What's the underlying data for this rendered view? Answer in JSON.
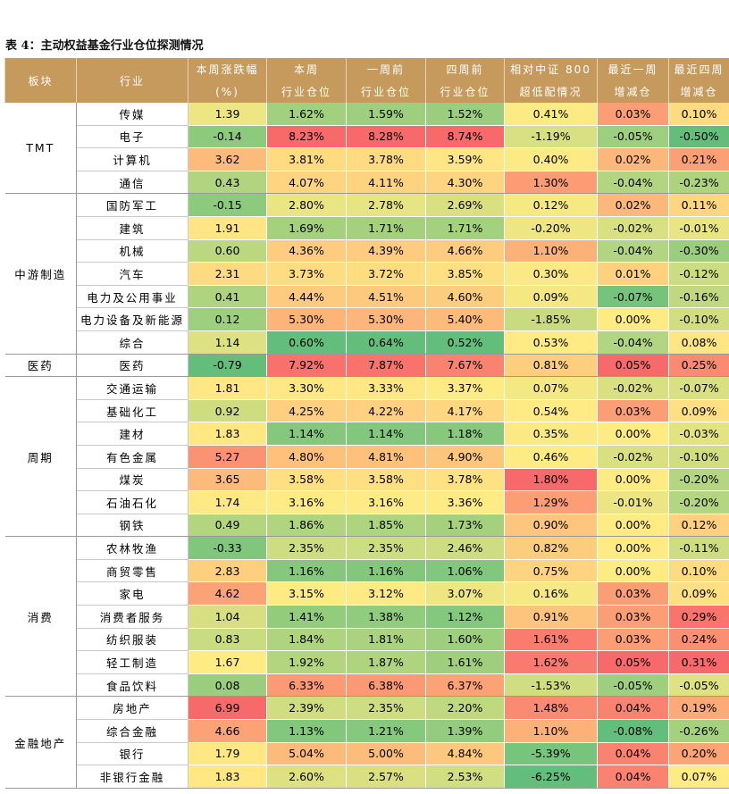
{
  "title": "表 4：主动权益基金行业仓位探测情况",
  "header": [
    [
      "板块"
    ],
    [
      "行业"
    ],
    [
      "本周涨跌幅",
      "(%)"
    ],
    [
      "本周",
      "行业仓位"
    ],
    [
      "一周前",
      "行业仓位"
    ],
    [
      "四周前",
      "行业仓位"
    ],
    [
      "相对中证 800",
      "超低配情况"
    ],
    [
      "最近一周",
      "增减仓"
    ],
    [
      "最近四周",
      "增减仓"
    ]
  ],
  "groups": [
    {
      "name": "TMT",
      "rows": [
        [
          "传媒",
          "1.39",
          "1.62%",
          "1.59%",
          "1.52%",
          "0.41%",
          "0.03%",
          "0.10%"
        ],
        [
          "电子",
          "-0.14",
          "8.23%",
          "8.28%",
          "8.74%",
          "-1.19%",
          "-0.05%",
          "-0.50%"
        ],
        [
          "计算机",
          "3.62",
          "3.81%",
          "3.78%",
          "3.59%",
          "0.40%",
          "0.02%",
          "0.21%"
        ],
        [
          "通信",
          "0.43",
          "4.07%",
          "4.11%",
          "4.30%",
          "1.30%",
          "-0.04%",
          "-0.23%"
        ]
      ]
    },
    {
      "name": "中游制造",
      "rows": [
        [
          "国防军工",
          "-0.15",
          "2.80%",
          "2.78%",
          "2.69%",
          "0.12%",
          "0.02%",
          "0.11%"
        ],
        [
          "建筑",
          "1.91",
          "1.69%",
          "1.71%",
          "1.71%",
          "-0.20%",
          "-0.02%",
          "-0.01%"
        ],
        [
          "机械",
          "0.60",
          "4.36%",
          "4.39%",
          "4.66%",
          "1.10%",
          "-0.04%",
          "-0.30%"
        ],
        [
          "汽车",
          "2.31",
          "3.73%",
          "3.72%",
          "3.85%",
          "0.30%",
          "0.01%",
          "-0.12%"
        ],
        [
          "电力及公用事业",
          "0.41",
          "4.44%",
          "4.51%",
          "4.60%",
          "0.09%",
          "-0.07%",
          "-0.16%"
        ],
        [
          "电力设备及新能源",
          "0.12",
          "5.30%",
          "5.30%",
          "5.40%",
          "-1.85%",
          "0.00%",
          "-0.10%"
        ],
        [
          "综合",
          "1.14",
          "0.60%",
          "0.64%",
          "0.52%",
          "0.53%",
          "-0.04%",
          "0.08%"
        ]
      ]
    },
    {
      "name": "医药",
      "rows": [
        [
          "医药",
          "-0.79",
          "7.92%",
          "7.87%",
          "7.67%",
          "0.81%",
          "0.05%",
          "0.25%"
        ]
      ]
    },
    {
      "name": "周期",
      "rows": [
        [
          "交通运输",
          "1.81",
          "3.30%",
          "3.33%",
          "3.37%",
          "0.07%",
          "-0.02%",
          "-0.07%"
        ],
        [
          "基础化工",
          "0.92",
          "4.25%",
          "4.22%",
          "4.17%",
          "0.54%",
          "0.03%",
          "0.09%"
        ],
        [
          "建材",
          "1.83",
          "1.14%",
          "1.14%",
          "1.18%",
          "0.35%",
          "0.00%",
          "-0.03%"
        ],
        [
          "有色金属",
          "5.27",
          "4.80%",
          "4.81%",
          "4.90%",
          "0.46%",
          "-0.02%",
          "-0.10%"
        ],
        [
          "煤炭",
          "3.65",
          "3.58%",
          "3.58%",
          "3.78%",
          "1.80%",
          "0.00%",
          "-0.20%"
        ],
        [
          "石油石化",
          "1.74",
          "3.16%",
          "3.16%",
          "3.36%",
          "1.29%",
          "-0.01%",
          "-0.20%"
        ],
        [
          "钢铁",
          "0.49",
          "1.86%",
          "1.85%",
          "1.73%",
          "0.90%",
          "0.00%",
          "0.12%"
        ]
      ]
    },
    {
      "name": "消费",
      "rows": [
        [
          "农林牧渔",
          "-0.33",
          "2.35%",
          "2.35%",
          "2.46%",
          "0.82%",
          "0.00%",
          "-0.11%"
        ],
        [
          "商贸零售",
          "2.83",
          "1.16%",
          "1.16%",
          "1.06%",
          "0.75%",
          "0.00%",
          "0.10%"
        ],
        [
          "家电",
          "4.62",
          "3.15%",
          "3.12%",
          "3.07%",
          "0.16%",
          "0.03%",
          "0.09%"
        ],
        [
          "消费者服务",
          "1.04",
          "1.41%",
          "1.38%",
          "1.12%",
          "0.91%",
          "0.03%",
          "0.29%"
        ],
        [
          "纺织服装",
          "0.83",
          "1.84%",
          "1.81%",
          "1.60%",
          "1.61%",
          "0.03%",
          "0.24%"
        ],
        [
          "轻工制造",
          "1.67",
          "1.92%",
          "1.87%",
          "1.61%",
          "1.62%",
          "0.05%",
          "0.31%"
        ],
        [
          "食品饮料",
          "0.08",
          "6.33%",
          "6.38%",
          "6.37%",
          "-1.53%",
          "-0.05%",
          "-0.05%"
        ]
      ]
    },
    {
      "name": "金融地产",
      "rows": [
        [
          "房地产",
          "6.99",
          "2.39%",
          "2.35%",
          "2.20%",
          "1.48%",
          "0.04%",
          "0.19%"
        ],
        [
          "综合金融",
          "4.66",
          "1.13%",
          "1.21%",
          "1.39%",
          "1.10%",
          "-0.08%",
          "-0.26%"
        ],
        [
          "银行",
          "1.79",
          "5.04%",
          "5.00%",
          "4.84%",
          "-5.39%",
          "0.04%",
          "0.20%"
        ],
        [
          "非银行金融",
          "1.83",
          "2.60%",
          "2.57%",
          "2.53%",
          "-6.25%",
          "0.04%",
          "0.07%"
        ]
      ]
    }
  ]
}
